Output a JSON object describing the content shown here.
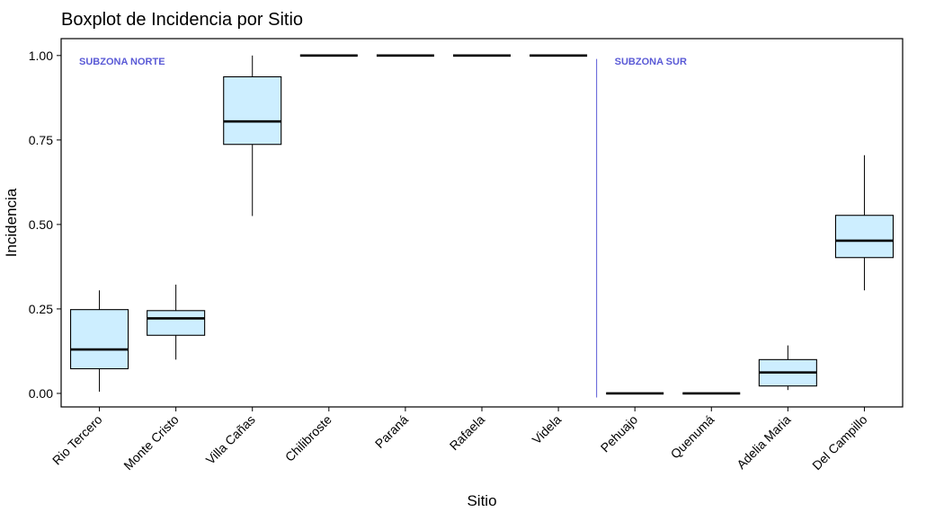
{
  "chart_data": {
    "type": "boxplot",
    "title": "Boxplot de Incidencia por Sitio",
    "xlabel": "Sitio",
    "ylabel": "Incidencia",
    "ylim": [
      -0.04,
      1.05
    ],
    "yticks": [
      0.0,
      0.25,
      0.5,
      0.75,
      1.0
    ],
    "ytick_labels": [
      "0.00",
      "0.25",
      "0.50",
      "0.75",
      "1.00"
    ],
    "grid": false,
    "box_fill": "#cdeeff",
    "zone_color": "#5a5ad6",
    "zones": [
      {
        "label": "SUBZONA NORTE",
        "start_index": 0
      },
      {
        "label": "SUBZONA SUR",
        "start_index": 7
      }
    ],
    "divider_after_index": 6,
    "categories": [
      "Rio Tercero",
      "Monte Cristo",
      "Villa Cañas",
      "Chilibroste",
      "Paraná",
      "Rafaela",
      "Videla",
      "Pehuajo",
      "Quenumá",
      "Adelia Maria",
      "Del Campillo"
    ],
    "boxes": [
      {
        "min": 0.005,
        "q1": 0.073,
        "median": 0.13,
        "q3": 0.248,
        "max": 0.305
      },
      {
        "min": 0.1,
        "q1": 0.172,
        "median": 0.222,
        "q3": 0.245,
        "max": 0.322
      },
      {
        "min": 0.525,
        "q1": 0.737,
        "median": 0.805,
        "q3": 0.937,
        "max": 1.0
      },
      {
        "min": 1.0,
        "q1": 1.0,
        "median": 1.0,
        "q3": 1.0,
        "max": 1.0
      },
      {
        "min": 1.0,
        "q1": 1.0,
        "median": 1.0,
        "q3": 1.0,
        "max": 1.0
      },
      {
        "min": 1.0,
        "q1": 1.0,
        "median": 1.0,
        "q3": 1.0,
        "max": 1.0
      },
      {
        "min": 1.0,
        "q1": 1.0,
        "median": 1.0,
        "q3": 1.0,
        "max": 1.0
      },
      {
        "min": 0.0,
        "q1": 0.0,
        "median": 0.0,
        "q3": 0.0,
        "max": 0.0
      },
      {
        "min": 0.0,
        "q1": 0.0,
        "median": 0.0,
        "q3": 0.0,
        "max": 0.0
      },
      {
        "min": 0.01,
        "q1": 0.022,
        "median": 0.062,
        "q3": 0.1,
        "max": 0.142
      },
      {
        "min": 0.305,
        "q1": 0.402,
        "median": 0.452,
        "q3": 0.527,
        "max": 0.705
      }
    ]
  }
}
